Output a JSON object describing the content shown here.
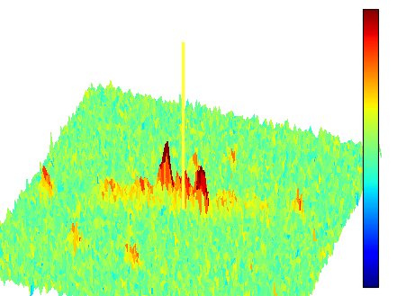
{
  "chart_data": {
    "type": "surface",
    "tick_labels": false,
    "xlim": [
      -10,
      10
    ],
    "ylim": [
      -10,
      10
    ],
    "zlim": [
      -2,
      12
    ],
    "color_range": [
      -3,
      3
    ],
    "noise_amplitude": 0.35,
    "peaks": [
      {
        "x": 0,
        "y": 0,
        "height": 2.5,
        "width": 0.5
      },
      {
        "x": -1.3,
        "y": 0.4,
        "height": 3.8,
        "width": 0.3
      },
      {
        "x": 1.3,
        "y": -0.4,
        "height": 3.8,
        "width": 0.3
      },
      {
        "x": -4.5,
        "y": -1.0,
        "height": 1.3,
        "width": 0.7
      },
      {
        "x": -2.5,
        "y": -0.5,
        "height": 1.6,
        "width": 0.6
      },
      {
        "x": 2.5,
        "y": 0.5,
        "height": 1.3,
        "width": 0.6
      },
      {
        "x": 4.5,
        "y": 1.0,
        "height": 0.9,
        "width": 0.6
      },
      {
        "x": 7.0,
        "y": 1.5,
        "height": 1.8,
        "width": 0.3
      },
      {
        "x": -8.5,
        "y": -2.0,
        "height": 1.8,
        "width": 0.3
      },
      {
        "x": -5.0,
        "y": -6.0,
        "height": 1.4,
        "width": 0.3
      },
      {
        "x": -1.0,
        "y": -6.5,
        "height": 1.6,
        "width": 0.3
      },
      {
        "x": 1.5,
        "y": 4.5,
        "height": 1.2,
        "width": 0.3
      },
      {
        "x": -0.4,
        "y": 3.0,
        "height": 1.8,
        "width": 0.25
      }
    ],
    "spike": {
      "x": 0,
      "y": 0,
      "height": 12,
      "color": "#ffff33"
    }
  }
}
